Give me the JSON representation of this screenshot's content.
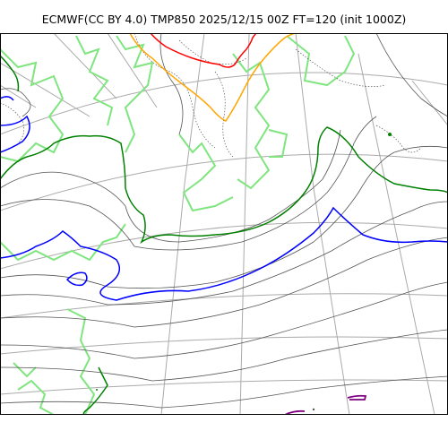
{
  "title": "ECMWF(CC BY 4.0) TMP850 2025/12/15 00Z FT=120 (init 1000Z)",
  "colors": {
    "frame": "#000000",
    "graticule": "#aaaaaa",
    "coastline": "#7fe57f",
    "isotherm": "#555555",
    "isotherm_dotted": "#555555",
    "contour_zero": "#0000ff",
    "contour_green": "#008000",
    "contour_orange": "#ffa500",
    "contour_red": "#ff0000",
    "contour_purple": "#800080"
  }
}
